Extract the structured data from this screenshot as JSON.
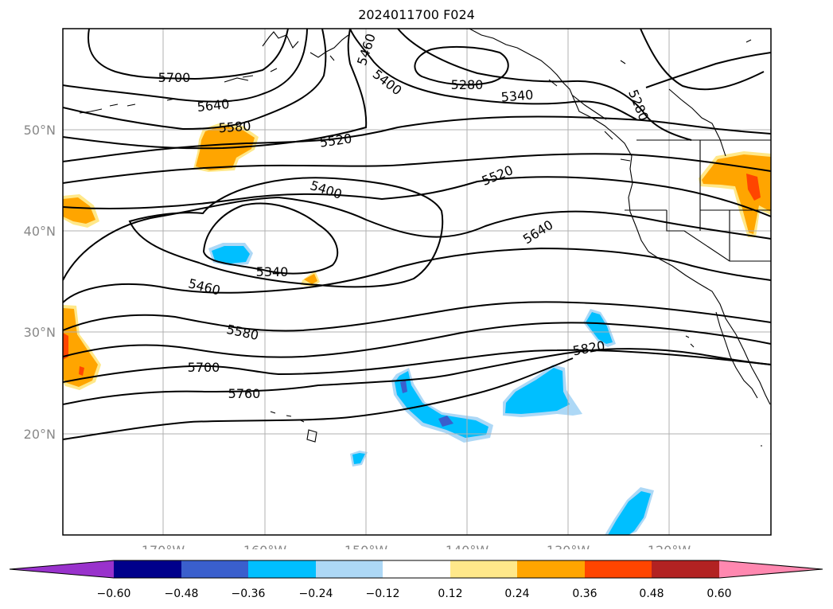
{
  "title": "2024011700 F024",
  "map": {
    "lat_labels": [
      "50°N",
      "40°N",
      "30°N",
      "20°N"
    ],
    "lon_labels": [
      "170°W",
      "160°W",
      "150°W",
      "140°W",
      "130°W",
      "120°W"
    ],
    "gridlines": true
  },
  "contours": {
    "labels": [
      "5700",
      "5640",
      "5580",
      "5520",
      "5460",
      "5400",
      "5280",
      "5340",
      "5400",
      "5520",
      "5640",
      "5340",
      "5460",
      "5580",
      "5700",
      "5760",
      "5820",
      "5280"
    ]
  },
  "colorbar": {
    "ticks": [
      "−0.60",
      "−0.48",
      "−0.36",
      "−0.24",
      "−0.12",
      "0.12",
      "0.24",
      "0.36",
      "0.48",
      "0.60"
    ],
    "colors": [
      "#9932cc",
      "#00008b",
      "#3a5fcd",
      "#00bfff",
      "#add8f6",
      "#ffffff",
      "#ffe88a",
      "#ffa500",
      "#ff4500",
      "#b22222",
      "#ff88b0"
    ]
  }
}
